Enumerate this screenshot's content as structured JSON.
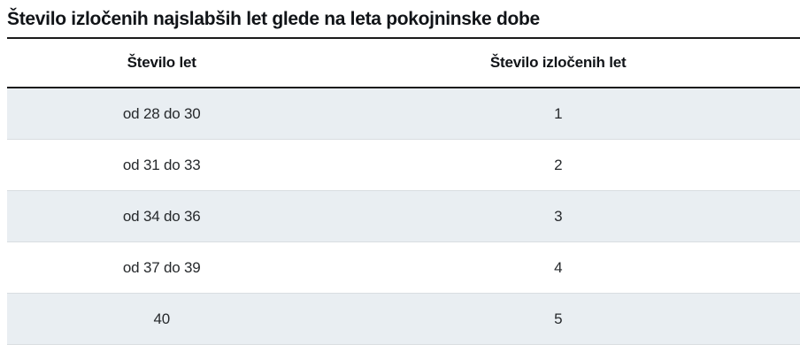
{
  "page": {
    "title": "Število izločenih najslabših let glede na leta pokojninske dobe"
  },
  "table": {
    "columns": {
      "years": "Število let",
      "excluded": "Število izločenih let"
    },
    "rows": [
      {
        "years": "od 28 do 30",
        "excluded": "1"
      },
      {
        "years": "od 31 do 33",
        "excluded": "2"
      },
      {
        "years": "od 34 do 36",
        "excluded": "3"
      },
      {
        "years": "od 37 do 39",
        "excluded": "4"
      },
      {
        "years": "40",
        "excluded": "5"
      }
    ],
    "colors": {
      "rule_dark": "#1a1a1a",
      "row_shade": "#e9eef2",
      "row_border": "#d9dde1",
      "text_dark": "#111418",
      "text_body": "#26292c"
    }
  }
}
